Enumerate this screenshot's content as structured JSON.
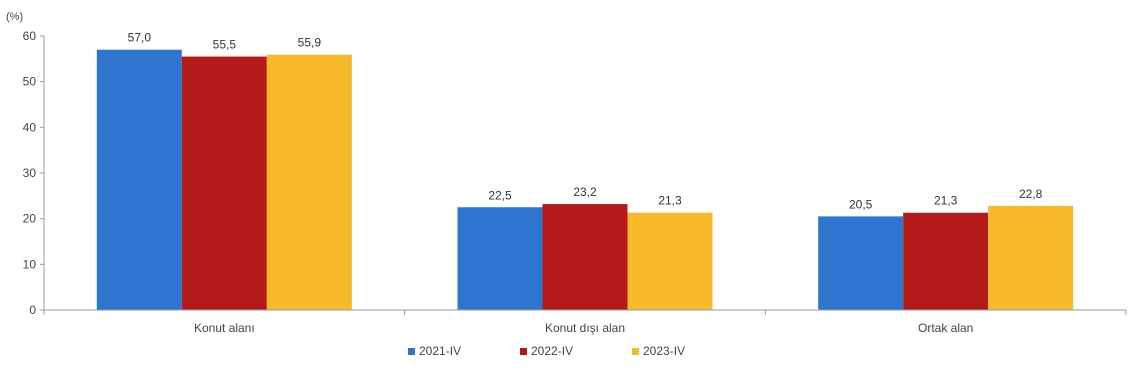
{
  "chart_data": {
    "type": "bar",
    "unit_label": "(%)",
    "categories": [
      "Konut alanı",
      "Konut dışı alan",
      "Ortak alan"
    ],
    "series": [
      {
        "name": "2021-IV",
        "color": "#2E75D0",
        "values": [
          57.0,
          22.5,
          20.5
        ],
        "labels": [
          "57,0",
          "22,5",
          "20,5"
        ]
      },
      {
        "name": "2022-IV",
        "color": "#B41A1A",
        "values": [
          55.5,
          23.2,
          21.3
        ],
        "labels": [
          "55,5",
          "23,2",
          "21,3"
        ]
      },
      {
        "name": "2023-IV",
        "color": "#F6B929",
        "values": [
          55.9,
          21.3,
          22.8
        ],
        "labels": [
          "55,9",
          "21,3",
          "22,8"
        ]
      }
    ],
    "ylim": [
      0,
      60
    ],
    "yticks": [
      0,
      10,
      20,
      30,
      40,
      50,
      60
    ],
    "grid": false,
    "legend_position": "bottom-center"
  }
}
